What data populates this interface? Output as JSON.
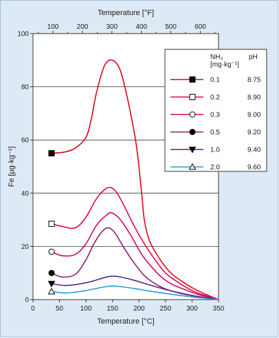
{
  "chart_data": {
    "type": "line",
    "xlabel": "Temperature [°C]",
    "x2label": "Temperature [°F]",
    "ylabel": "Fe [µg·kg⁻¹]",
    "xlim": [
      0,
      350
    ],
    "ylim": [
      0,
      100
    ],
    "xticks": [
      0,
      50,
      100,
      150,
      200,
      250,
      300,
      350
    ],
    "yticks": [
      0,
      20,
      40,
      60,
      80,
      100
    ],
    "x2ticks": [
      100,
      200,
      300,
      400,
      500,
      600
    ],
    "x2tick_labels": [
      "100",
      "200",
      "300",
      "400",
      "500",
      "600"
    ],
    "grid": "horizontal",
    "legend": {
      "placement": "top-right",
      "header_nh3": "NH₃",
      "header_unit": "[mg·kg⁻¹]",
      "header_ph": "pH"
    },
    "series": [
      {
        "name": "0.1",
        "ph": "8.75",
        "color": "#e3001b",
        "marker": "square-filled",
        "points": [
          [
            35,
            55
          ],
          [
            60,
            55.5
          ],
          [
            80,
            57
          ],
          [
            100,
            61
          ],
          [
            110,
            68
          ],
          [
            120,
            78
          ],
          [
            135,
            88
          ],
          [
            150,
            90
          ],
          [
            165,
            86
          ],
          [
            180,
            74
          ],
          [
            195,
            58
          ],
          [
            205,
            40
          ],
          [
            210,
            30
          ],
          [
            220,
            22
          ],
          [
            240,
            15
          ],
          [
            260,
            10
          ],
          [
            280,
            7
          ],
          [
            300,
            4.5
          ],
          [
            320,
            2.5
          ],
          [
            350,
            0
          ]
        ]
      },
      {
        "name": "0.2",
        "ph": "8.90",
        "color": "#e5004d",
        "marker": "square-open",
        "points": [
          [
            35,
            28.5
          ],
          [
            55,
            27.5
          ],
          [
            80,
            27
          ],
          [
            100,
            31
          ],
          [
            120,
            38
          ],
          [
            140,
            42
          ],
          [
            155,
            41
          ],
          [
            170,
            36
          ],
          [
            190,
            28
          ],
          [
            210,
            21
          ],
          [
            230,
            15
          ],
          [
            250,
            10
          ],
          [
            270,
            7
          ],
          [
            290,
            4.5
          ],
          [
            310,
            2.5
          ],
          [
            350,
            0
          ]
        ]
      },
      {
        "name": "0.3",
        "ph": "9.00",
        "color": "#d4006a",
        "marker": "circle-open",
        "points": [
          [
            35,
            18
          ],
          [
            55,
            16.5
          ],
          [
            80,
            17
          ],
          [
            100,
            21
          ],
          [
            120,
            28
          ],
          [
            140,
            32
          ],
          [
            150,
            32.5
          ],
          [
            165,
            30
          ],
          [
            185,
            24
          ],
          [
            205,
            17
          ],
          [
            225,
            12
          ],
          [
            245,
            8
          ],
          [
            265,
            5.5
          ],
          [
            290,
            3.5
          ],
          [
            310,
            2
          ],
          [
            350,
            0
          ]
        ]
      },
      {
        "name": "0.5",
        "ph": "9.20",
        "color": "#8b1c6e",
        "marker": "circle-filled",
        "points": [
          [
            35,
            10
          ],
          [
            55,
            8.5
          ],
          [
            80,
            9.5
          ],
          [
            100,
            15
          ],
          [
            115,
            21
          ],
          [
            130,
            25.5
          ],
          [
            142,
            27
          ],
          [
            155,
            25
          ],
          [
            170,
            20
          ],
          [
            190,
            14
          ],
          [
            210,
            9
          ],
          [
            230,
            6
          ],
          [
            250,
            4
          ],
          [
            275,
            2.5
          ],
          [
            300,
            1.5
          ],
          [
            350,
            0
          ]
        ]
      },
      {
        "name": "1.0",
        "ph": "9.40",
        "color": "#5b2283",
        "marker": "triangle-down-filled",
        "points": [
          [
            35,
            6
          ],
          [
            60,
            5.3
          ],
          [
            85,
            5.8
          ],
          [
            110,
            6.8
          ],
          [
            135,
            8.3
          ],
          [
            150,
            8.8
          ],
          [
            165,
            8.5
          ],
          [
            190,
            7.3
          ],
          [
            220,
            5.5
          ],
          [
            250,
            3.8
          ],
          [
            280,
            2.4
          ],
          [
            310,
            1.2
          ],
          [
            350,
            0
          ]
        ]
      },
      {
        "name": "2.0",
        "ph": "9.60",
        "color": "#1f9bd7",
        "marker": "triangle-up-open",
        "points": [
          [
            35,
            3
          ],
          [
            60,
            2.5
          ],
          [
            85,
            2.9
          ],
          [
            110,
            3.8
          ],
          [
            135,
            4.8
          ],
          [
            150,
            5.1
          ],
          [
            165,
            4.9
          ],
          [
            190,
            4.2
          ],
          [
            220,
            3.2
          ],
          [
            250,
            2.3
          ],
          [
            280,
            1.5
          ],
          [
            310,
            0.8
          ],
          [
            350,
            0
          ]
        ]
      }
    ]
  }
}
